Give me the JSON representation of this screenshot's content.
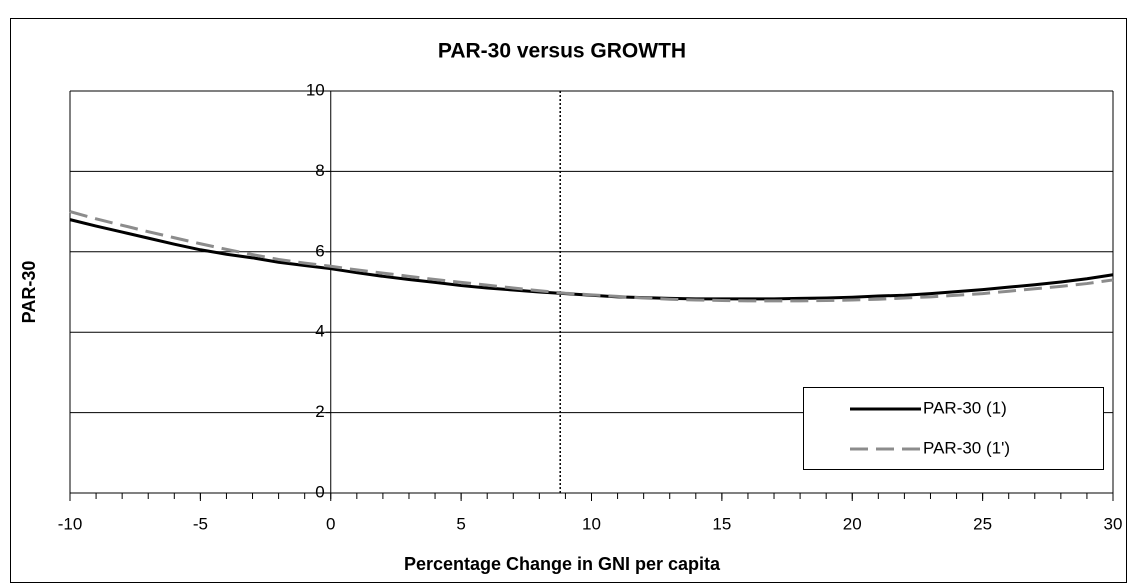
{
  "chart_data": {
    "type": "line",
    "title": "PAR-30 versus GROWTH",
    "x_label": "Percentage Change in GNI per capita",
    "y_label": "PAR-30",
    "x": [
      -10,
      -9,
      -8,
      -7,
      -6,
      -5,
      -4,
      -3,
      -2,
      -1,
      0,
      1,
      2,
      3,
      4,
      5,
      6,
      7,
      8,
      9,
      10,
      11,
      12,
      13,
      14,
      15,
      16,
      17,
      18,
      19,
      20,
      21,
      22,
      23,
      24,
      25,
      26,
      27,
      28,
      29,
      30
    ],
    "series": [
      {
        "name": "PAR-30 (1)",
        "color": "#000000",
        "dash": false,
        "values": [
          6.8,
          6.64,
          6.49,
          6.34,
          6.19,
          6.05,
          5.94,
          5.85,
          5.74,
          5.66,
          5.58,
          5.48,
          5.39,
          5.31,
          5.24,
          5.16,
          5.1,
          5.05,
          5.0,
          4.96,
          4.92,
          4.88,
          4.86,
          4.84,
          4.83,
          4.83,
          4.83,
          4.83,
          4.84,
          4.85,
          4.87,
          4.9,
          4.92,
          4.96,
          5.01,
          5.06,
          5.12,
          5.18,
          5.25,
          5.33,
          5.43
        ]
      },
      {
        "name": "PAR-30 (1')",
        "color": "#8c8c8c",
        "dash": true,
        "values": [
          7.0,
          6.82,
          6.66,
          6.5,
          6.35,
          6.2,
          6.06,
          5.93,
          5.81,
          5.72,
          5.64,
          5.55,
          5.47,
          5.39,
          5.31,
          5.24,
          5.17,
          5.1,
          5.03,
          4.97,
          4.93,
          4.89,
          4.85,
          4.82,
          4.8,
          4.79,
          4.78,
          4.78,
          4.78,
          4.79,
          4.8,
          4.82,
          4.85,
          4.88,
          4.92,
          4.96,
          5.02,
          5.08,
          5.14,
          5.21,
          5.3
        ]
      }
    ],
    "xlim": [
      -10,
      30
    ],
    "xticks": [
      -10,
      -5,
      0,
      5,
      10,
      15,
      20,
      25,
      30
    ],
    "ylim": [
      0,
      10
    ],
    "yticks": [
      0,
      2,
      4,
      6,
      8,
      10
    ],
    "vline": 8.8,
    "grid": true,
    "legend": "lower right"
  }
}
